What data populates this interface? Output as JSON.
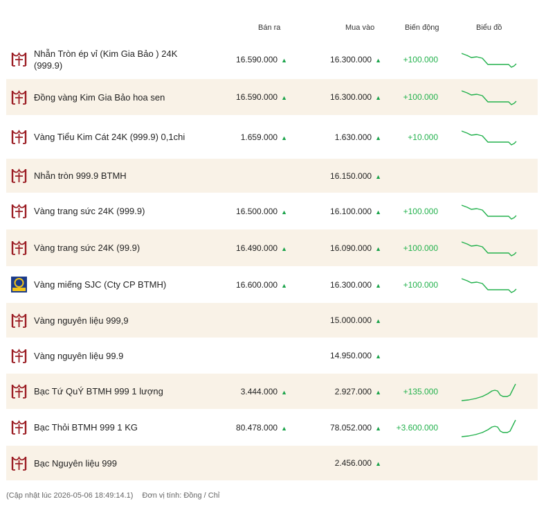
{
  "header": {
    "sell": "Bán ra",
    "buy": "Mua vào",
    "change": "Biến động",
    "chart": "Biểu đồ"
  },
  "colors": {
    "brand": "#9b1c23",
    "up": "#22b14c",
    "down_trend": "#1aa34a",
    "row_alt": "#f9f2e7"
  },
  "rows": [
    {
      "name": "Nhẫn Tròn ép vỉ (Kim Gia Bảo ) 24K (999.9)",
      "sell": "16.590.000",
      "buy": "16.300.000",
      "change": "+100.000",
      "logo": "btmh-logo-icon",
      "trend": "down"
    },
    {
      "name": "Đồng vàng Kim Gia Bảo hoa sen",
      "sell": "16.590.000",
      "buy": "16.300.000",
      "change": "+100.000",
      "logo": "btmh-logo-icon",
      "trend": "down"
    },
    {
      "name": "Vàng Tiểu Kim Cát 24K (999.9) 0,1chi",
      "sell": "1.659.000",
      "buy": "1.630.000",
      "change": "+10.000",
      "logo": "btmh-logo-icon",
      "trend": "down"
    },
    {
      "name": "Nhẫn tròn 999.9 BTMH",
      "sell": "",
      "buy": "16.150.000",
      "change": "",
      "logo": "btmh-logo-icon",
      "trend": "none"
    },
    {
      "name": "Vàng trang sức 24K (999.9)",
      "sell": "16.500.000",
      "buy": "16.100.000",
      "change": "+100.000",
      "logo": "btmh-logo-icon",
      "trend": "down"
    },
    {
      "name": "Vàng trang sức 24K (99.9)",
      "sell": "16.490.000",
      "buy": "16.090.000",
      "change": "+100.000",
      "logo": "btmh-logo-icon",
      "trend": "down"
    },
    {
      "name": "Vàng miếng SJC (Cty CP BTMH)",
      "sell": "16.600.000",
      "buy": "16.300.000",
      "change": "+100.000",
      "logo": "sjc-logo-icon",
      "trend": "down"
    },
    {
      "name": "Vàng nguyên liệu 999,9",
      "sell": "",
      "buy": "15.000.000",
      "change": "",
      "logo": "btmh-logo-icon",
      "trend": "none"
    },
    {
      "name": "Vàng nguyên liệu 99.9",
      "sell": "",
      "buy": "14.950.000",
      "change": "",
      "logo": "btmh-logo-icon",
      "trend": "none"
    },
    {
      "name": "Bạc Tứ QuÝ BTMH 999 1 lượng",
      "sell": "3.444.000",
      "buy": "2.927.000",
      "change": "+135.000",
      "logo": "btmh-logo-icon",
      "trend": "up"
    },
    {
      "name": "Bạc Thỏi BTMH 999 1 KG",
      "sell": "80.478.000",
      "buy": "78.052.000",
      "change": "+3.600.000",
      "logo": "btmh-logo-icon",
      "trend": "up"
    },
    {
      "name": "Bạc Nguyên liệu 999",
      "sell": "",
      "buy": "2.456.000",
      "change": "",
      "logo": "btmh-logo-icon",
      "trend": "none"
    }
  ],
  "footer": {
    "updated": "(Cập nhật lúc 2026-05-06 18:49:14.1)",
    "unit": "Đơn vị tính: Đồng / Chỉ"
  }
}
